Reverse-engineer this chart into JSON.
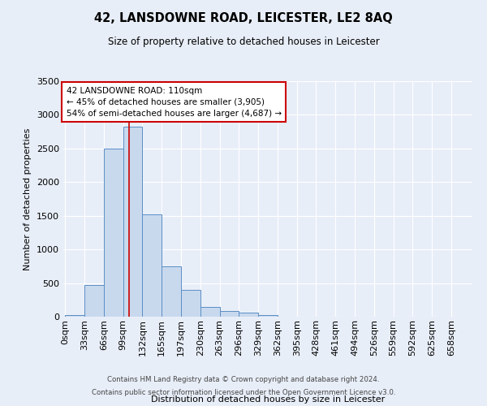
{
  "title": "42, LANSDOWNE ROAD, LEICESTER, LE2 8AQ",
  "subtitle": "Size of property relative to detached houses in Leicester",
  "xlabel": "Distribution of detached houses by size in Leicester",
  "ylabel": "Number of detached properties",
  "bar_labels": [
    "0sqm",
    "33sqm",
    "66sqm",
    "99sqm",
    "132sqm",
    "165sqm",
    "197sqm",
    "230sqm",
    "263sqm",
    "296sqm",
    "329sqm",
    "362sqm",
    "395sqm",
    "428sqm",
    "461sqm",
    "494sqm",
    "526sqm",
    "559sqm",
    "592sqm",
    "625sqm",
    "658sqm"
  ],
  "bar_heights": [
    20,
    470,
    2500,
    2820,
    1520,
    750,
    400,
    150,
    80,
    55,
    30,
    0,
    0,
    0,
    0,
    0,
    0,
    0,
    0,
    0,
    0
  ],
  "bar_color": "#c8d9ee",
  "bar_edge_color": "#5b8ec4",
  "vline_x": 110,
  "bin_size": 33,
  "ylim": [
    0,
    3500
  ],
  "yticks": [
    0,
    500,
    1000,
    1500,
    2000,
    2500,
    3000,
    3500
  ],
  "annotation_title": "42 LANSDOWNE ROAD: 110sqm",
  "annotation_line1": "← 45% of detached houses are smaller (3,905)",
  "annotation_line2": "54% of semi-detached houses are larger (4,687) →",
  "annotation_box_color": "#ffffff",
  "annotation_box_edge": "#cc0000",
  "footer1": "Contains HM Land Registry data © Crown copyright and database right 2024.",
  "footer2": "Contains public sector information licensed under the Open Government Licence v3.0.",
  "background_color": "#e8eef8",
  "plot_bg_color": "#e8eef8",
  "grid_color": "#ffffff",
  "vline_color": "#cc0000"
}
